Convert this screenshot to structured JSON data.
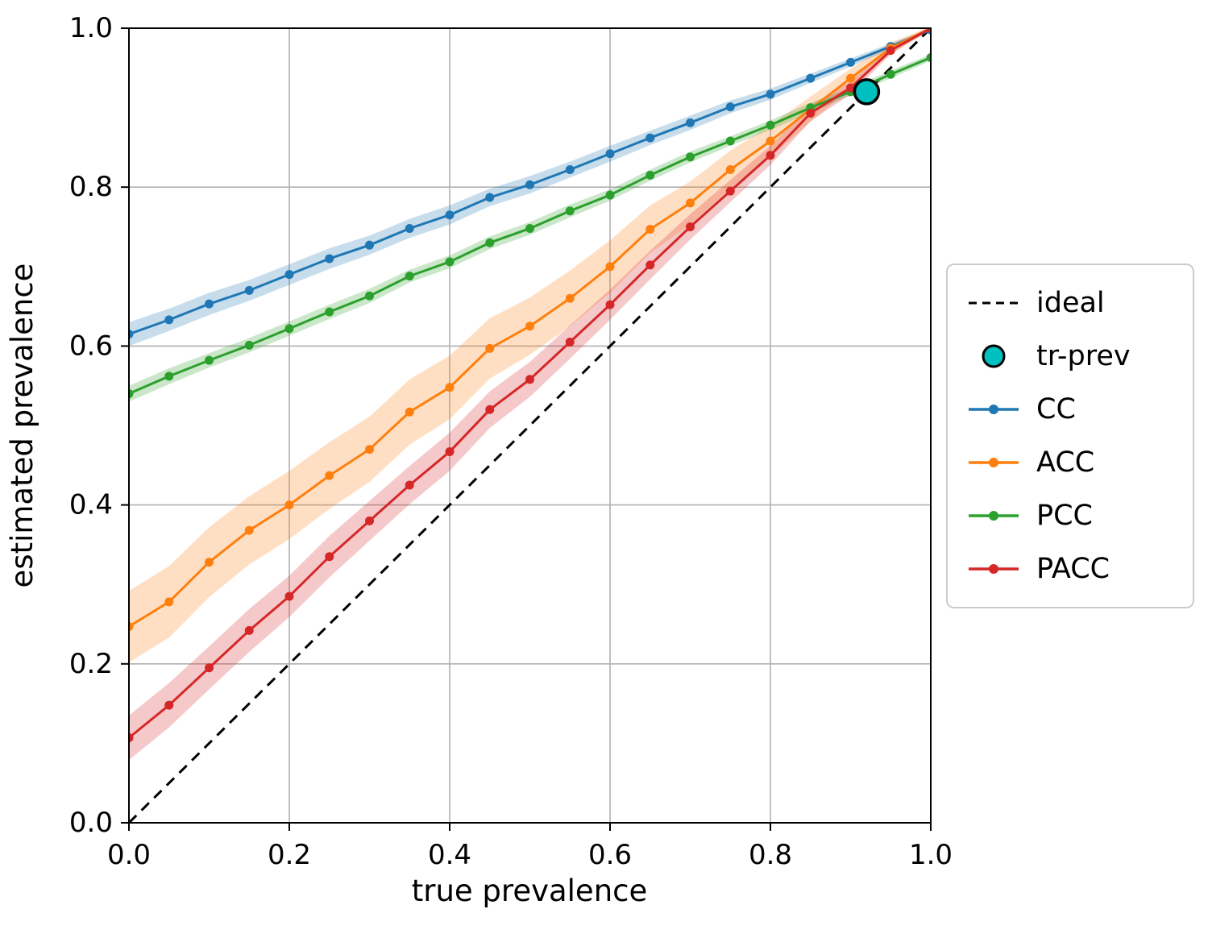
{
  "figure": {
    "xlabel": "true prevalence",
    "ylabel": "estimated prevalence",
    "x_ticks": [
      "0.0",
      "0.2",
      "0.4",
      "0.6",
      "0.8",
      "1.0"
    ],
    "y_ticks": [
      "0.0",
      "0.2",
      "0.4",
      "0.6",
      "0.8",
      "1.0"
    ]
  },
  "legend": {
    "items": [
      {
        "label": "ideal",
        "color": "#000000",
        "type": "dashed-line"
      },
      {
        "label": "tr-prev",
        "color": "#00bfbf",
        "type": "circle-marker"
      },
      {
        "label": "CC",
        "color": "#1f77b4",
        "type": "line-with-marker"
      },
      {
        "label": "ACC",
        "color": "#ff7f0e",
        "type": "line-with-marker"
      },
      {
        "label": "PCC",
        "color": "#2ca02c",
        "type": "line-with-marker"
      },
      {
        "label": "PACC",
        "color": "#d62728",
        "type": "line-with-marker"
      }
    ]
  },
  "chart_data": {
    "type": "line",
    "title": "",
    "xlabel": "true prevalence",
    "ylabel": "estimated prevalence",
    "xlim": [
      0,
      1
    ],
    "ylim": [
      0,
      1
    ],
    "grid": true,
    "legend_position": "outside-right",
    "x": [
      0,
      0.05,
      0.1,
      0.15,
      0.2,
      0.25,
      0.3,
      0.35,
      0.4,
      0.45,
      0.5,
      0.55,
      0.6,
      0.65,
      0.7,
      0.75,
      0.8,
      0.85,
      0.9,
      0.95,
      1.0
    ],
    "series": [
      {
        "name": "CC",
        "color": "#1f77b4",
        "values": [
          0.615,
          0.633,
          0.653,
          0.67,
          0.69,
          0.71,
          0.727,
          0.748,
          0.765,
          0.787,
          0.803,
          0.822,
          0.842,
          0.862,
          0.881,
          0.901,
          0.917,
          0.937,
          0.957,
          0.977,
          0.998
        ],
        "band": [
          0.015,
          0.014,
          0.014,
          0.013,
          0.013,
          0.013,
          0.012,
          0.012,
          0.012,
          0.011,
          0.011,
          0.01,
          0.01,
          0.009,
          0.009,
          0.008,
          0.007,
          0.006,
          0.005,
          0.004,
          0.002
        ]
      },
      {
        "name": "ACC",
        "color": "#ff7f0e",
        "values": [
          0.247,
          0.278,
          0.328,
          0.368,
          0.4,
          0.437,
          0.47,
          0.517,
          0.548,
          0.597,
          0.625,
          0.66,
          0.7,
          0.747,
          0.78,
          0.822,
          0.858,
          0.898,
          0.937,
          0.975,
          1.0
        ],
        "band": [
          0.045,
          0.045,
          0.044,
          0.043,
          0.043,
          0.042,
          0.041,
          0.041,
          0.04,
          0.038,
          0.036,
          0.035,
          0.033,
          0.03,
          0.027,
          0.024,
          0.02,
          0.016,
          0.012,
          0.007,
          0.002
        ]
      },
      {
        "name": "PCC",
        "color": "#2ca02c",
        "values": [
          0.54,
          0.562,
          0.582,
          0.601,
          0.622,
          0.643,
          0.663,
          0.688,
          0.706,
          0.73,
          0.748,
          0.77,
          0.79,
          0.815,
          0.838,
          0.858,
          0.878,
          0.9,
          0.92,
          0.942,
          0.963
        ],
        "band": [
          0.01,
          0.01,
          0.009,
          0.009,
          0.009,
          0.009,
          0.009,
          0.008,
          0.008,
          0.008,
          0.008,
          0.008,
          0.007,
          0.007,
          0.007,
          0.006,
          0.006,
          0.006,
          0.005,
          0.005,
          0.004
        ]
      },
      {
        "name": "PACC",
        "color": "#d62728",
        "values": [
          0.107,
          0.148,
          0.195,
          0.242,
          0.285,
          0.335,
          0.38,
          0.425,
          0.467,
          0.52,
          0.558,
          0.605,
          0.652,
          0.702,
          0.75,
          0.795,
          0.84,
          0.893,
          0.925,
          0.972,
          1.0
        ],
        "band": [
          0.028,
          0.028,
          0.027,
          0.027,
          0.026,
          0.026,
          0.025,
          0.024,
          0.024,
          0.023,
          0.022,
          0.021,
          0.019,
          0.018,
          0.016,
          0.014,
          0.012,
          0.01,
          0.008,
          0.005,
          0.002
        ]
      }
    ],
    "ideal_line": {
      "label": "ideal",
      "from": [
        0,
        0
      ],
      "to": [
        1,
        1
      ],
      "style": "dashed",
      "color": "#000000"
    },
    "tr_prev": {
      "label": "tr-prev",
      "x": 0.92,
      "y": 0.92,
      "color": "#00bfbf"
    }
  }
}
